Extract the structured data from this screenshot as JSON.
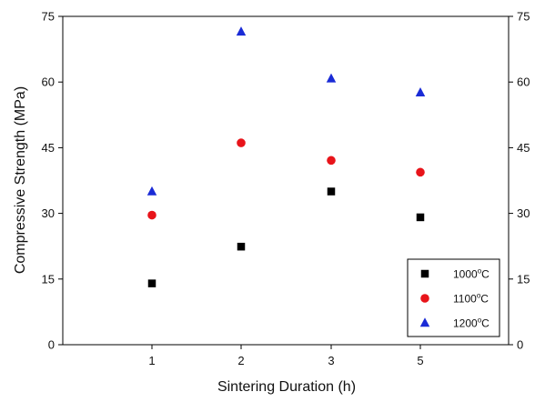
{
  "chart_data": {
    "type": "scatter",
    "title": "",
    "xlabel": "Sintering Duration (h)",
    "ylabel": "Compressive Strength (MPa)",
    "x_categories": [
      "1",
      "2",
      "3",
      "5"
    ],
    "ylim": [
      0,
      75
    ],
    "yticks": [
      0,
      15,
      30,
      45,
      60,
      75
    ],
    "grid": false,
    "right_axis": true,
    "legend_placement": "bottom-right",
    "series": [
      {
        "name": "1000°C",
        "label_main": "1000",
        "label_degree": "o",
        "label_unit": "C",
        "marker": "square",
        "color": "#000000",
        "values": [
          14.0,
          22.4,
          35.0,
          29.1
        ]
      },
      {
        "name": "1100°C",
        "label_main": "1100",
        "label_degree": "o",
        "label_unit": "C",
        "marker": "circle",
        "color": "#e8141a",
        "values": [
          29.6,
          46.1,
          42.1,
          39.4
        ]
      },
      {
        "name": "1200°C",
        "label_main": "1200",
        "label_degree": "o",
        "label_unit": "C",
        "marker": "triangle",
        "color": "#1a2bd6",
        "values": [
          35.0,
          71.5,
          60.8,
          57.6
        ]
      }
    ]
  }
}
